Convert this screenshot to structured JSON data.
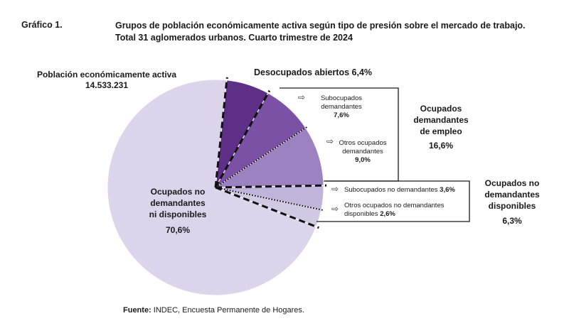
{
  "header": {
    "label": "Gráfico 1.",
    "title_line1": "Grupos de población económicamente activa según tipo de presión sobre el mercado de trabajo.",
    "title_line2": "Total 31 aglomerados urbanos. Cuarto trimestre de 2024"
  },
  "labels": {
    "pea_title": "Población económicamente activa",
    "pea_value": "14.533.231",
    "desocupados": "Desocupados abiertos",
    "desocupados_pct": "6,4%",
    "sub_dem_l1": "Subocupados",
    "sub_dem_l2": "demandantes",
    "sub_dem_pct": "7,6%",
    "otros_dem_l1": "Otros ocupados",
    "otros_dem_l2": "demandantes",
    "otros_dem_pct": "9,0%",
    "group_dem_l1": "Ocupados",
    "group_dem_l2": "demandantes",
    "group_dem_l3": "de empleo",
    "group_dem_pct": "16,6%",
    "sub_nodem": "Subocupados no demandantes",
    "sub_nodem_pct": "3,6%",
    "otros_nodem_l1": "Otros ocupados no demandantes",
    "otros_nodem_l2": "disponibles",
    "otros_nodem_pct": "2,6%",
    "group_nodem_l1": "Ocupados no",
    "group_nodem_l2": "demandantes",
    "group_nodem_l3": "disponibles",
    "group_nodem_pct": "6,3%",
    "main_l1": "Ocupados no",
    "main_l2": "demandantes",
    "main_l3": "ni disponibles",
    "main_pct": "70,6%"
  },
  "source": {
    "prefix": "Fuente:",
    "text": "INDEC, Encuesta Permanente de Hogares."
  },
  "chart_data": {
    "type": "pie",
    "title": "Grupos de población económicamente activa según tipo de presión sobre el mercado de trabajo",
    "total": "14.533.231",
    "slices": [
      {
        "name": "Desocupados abiertos",
        "value": 6.4,
        "color": "#5e2f87"
      },
      {
        "name": "Subocupados demandantes",
        "value": 7.6,
        "color": "#7b51a6"
      },
      {
        "name": "Otros ocupados demandantes",
        "value": 9.0,
        "color": "#9c82c0"
      },
      {
        "name": "Subocupados no demandantes",
        "value": 3.6,
        "color": "#c1b4da"
      },
      {
        "name": "Otros ocupados no demandantes disponibles",
        "value": 2.6,
        "color": "#d1c8e4"
      },
      {
        "name": "Ocupados no demandantes ni disponibles",
        "value": 70.6,
        "color": "#dcd4ea"
      }
    ],
    "groups": [
      {
        "name": "Ocupados demandantes de empleo",
        "value": 16.6
      },
      {
        "name": "Ocupados no demandantes disponibles",
        "value": 6.3
      }
    ],
    "dash_color": "#111111"
  }
}
